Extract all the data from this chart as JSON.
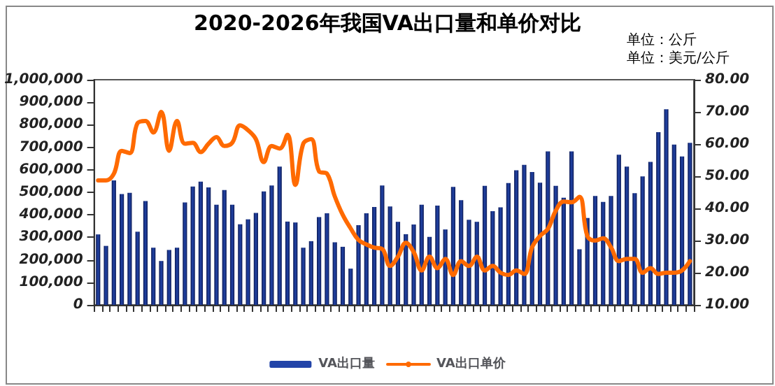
{
  "chart_data": {
    "type": "bar",
    "title": "2020-2026年我国VA出口量和单价对比",
    "annotations": [
      "单位：公斤",
      "单位：美元/公斤"
    ],
    "categories": [
      null,
      null,
      null,
      null,
      null,
      null,
      null,
      null,
      null,
      null,
      null,
      null,
      null,
      null,
      null,
      null,
      null,
      null,
      null,
      null,
      null,
      null,
      null,
      null,
      null,
      null,
      null,
      null,
      null,
      null,
      null,
      null,
      null,
      null,
      null,
      null,
      null,
      null,
      null,
      null,
      null,
      null,
      null,
      null,
      null,
      null,
      null,
      null,
      null,
      null,
      null,
      null,
      null,
      null,
      null,
      null,
      null,
      null,
      null,
      null,
      null,
      null,
      null,
      null,
      null,
      null,
      null,
      null,
      null,
      null,
      null,
      null,
      null,
      null,
      null,
      null
    ],
    "series": [
      {
        "name": "VA出口量",
        "color": "#2244a8",
        "values": [
          313000,
          262000,
          553000,
          492000,
          498000,
          325000,
          461000,
          254000,
          195000,
          244000,
          254000,
          455000,
          526000,
          547000,
          522000,
          445000,
          510000,
          445000,
          358000,
          380000,
          408000,
          504000,
          530000,
          614000,
          370000,
          366000,
          254000,
          283000,
          390000,
          407000,
          278000,
          258000,
          161000,
          354000,
          407000,
          435000,
          530000,
          437000,
          369000,
          314000,
          357000,
          445000,
          302000,
          441000,
          335000,
          524000,
          465000,
          378000,
          369000,
          529000,
          416000,
          433000,
          541000,
          598000,
          622000,
          590000,
          543000,
          682000,
          529000,
          476000,
          682000,
          247000,
          386000,
          484000,
          457000,
          484000,
          667000,
          614000,
          496000,
          571000,
          635000,
          767000,
          869000,
          712000,
          659000,
          720000
        ]
      },
      {
        "name": "VA出口单价",
        "type": "line",
        "axis": "y2",
        "color": "#ff6a00",
        "values": [
          48.7,
          48.7,
          50.8,
          57.9,
          57.2,
          66.5,
          67.2,
          63.6,
          70.0,
          57.9,
          67.2,
          60.1,
          60.4,
          57.5,
          60.1,
          62.2,
          59.4,
          60.4,
          65.8,
          64.3,
          61.5,
          54.4,
          59.4,
          58.6,
          62.9,
          47.3,
          60.1,
          61.5,
          51.5,
          50.8,
          43.7,
          38.0,
          33.8,
          30.2,
          28.8,
          27.8,
          27.4,
          22.1,
          25.0,
          29.3,
          26.4,
          20.7,
          25.0,
          21.4,
          24.3,
          19.3,
          23.6,
          22.1,
          25.0,
          20.7,
          22.1,
          20.0,
          19.3,
          20.7,
          19.6,
          27.9,
          31.4,
          33.6,
          39.3,
          42.1,
          41.9,
          43.6,
          31.4,
          30.0,
          30.7,
          27.9,
          23.6,
          24.3,
          24.3,
          20.0,
          21.4,
          19.6,
          20.0,
          20.0,
          20.7,
          23.6
        ]
      }
    ],
    "ylim": [
      0,
      1000000
    ],
    "yticks": [
      {
        "value": 0,
        "label": "0"
      },
      {
        "value": 100000,
        "label": "100,000"
      },
      {
        "value": 200000,
        "label": "200,000"
      },
      {
        "value": 300000,
        "label": "300,000"
      },
      {
        "value": 400000,
        "label": "400,000"
      },
      {
        "value": 500000,
        "label": "500,000"
      },
      {
        "value": 600000,
        "label": "600,000"
      },
      {
        "value": 700000,
        "label": "700,000"
      },
      {
        "value": 800000,
        "label": "800,000"
      },
      {
        "value": 900000,
        "label": "900,000"
      },
      {
        "value": 1000000,
        "label": "1,000,000"
      }
    ],
    "y2lim": [
      10,
      80
    ],
    "y2ticks": [
      {
        "value": 10,
        "label": "10.00"
      },
      {
        "value": 20,
        "label": "20.00"
      },
      {
        "value": 30,
        "label": "30.00"
      },
      {
        "value": 40,
        "label": "40.00"
      },
      {
        "value": 50,
        "label": "50.00"
      },
      {
        "value": 60,
        "label": "60.00"
      },
      {
        "value": 70,
        "label": "70.00"
      },
      {
        "value": 80,
        "label": "80.00"
      }
    ],
    "grid": false,
    "legend": "bottom",
    "marker": "none",
    "line_style": "solid"
  }
}
